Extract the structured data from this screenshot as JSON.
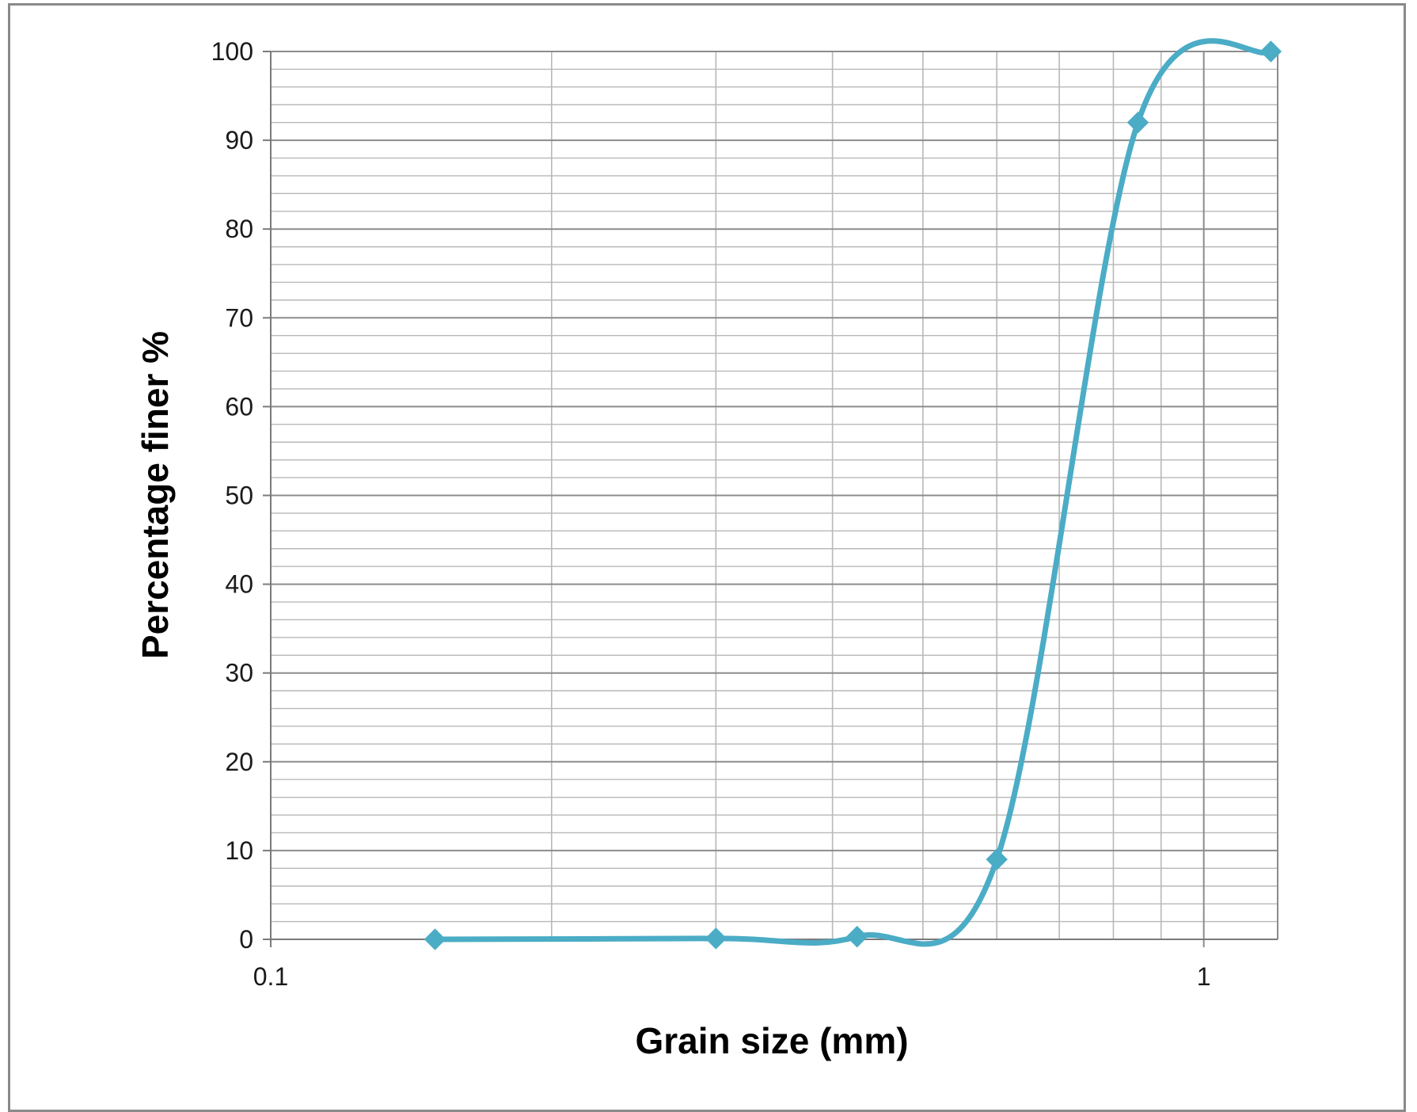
{
  "chart_data": {
    "type": "line",
    "title": "",
    "xlabel": "Grain size (mm)",
    "ylabel": "Percentage finer %",
    "x_scale": "log",
    "xlim": [
      0.1,
      1.2
    ],
    "ylim": [
      0,
      100
    ],
    "x_tick_labels": [
      "0.1",
      "1"
    ],
    "y_tick_labels": [
      "0",
      "10",
      "20",
      "30",
      "40",
      "50",
      "60",
      "70",
      "80",
      "90",
      "100"
    ],
    "grid": true,
    "legend": "none",
    "series": [
      {
        "x": [
          0.15,
          0.3,
          0.425,
          0.6,
          0.85,
          1.18
        ],
        "y": [
          0,
          0.1,
          0.3,
          9,
          92,
          100
        ],
        "color": "#4bacc6",
        "marker": "diamond",
        "smooth": true
      }
    ]
  }
}
